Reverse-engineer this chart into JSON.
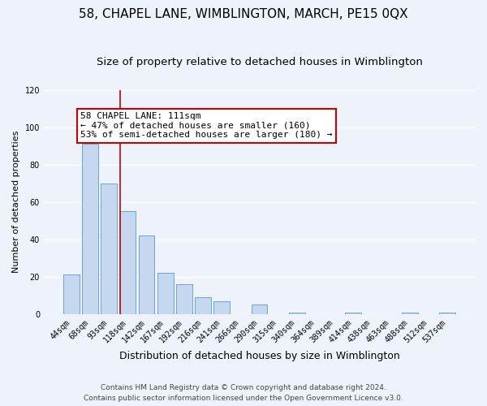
{
  "title": "58, CHAPEL LANE, WIMBLINGTON, MARCH, PE15 0QX",
  "subtitle": "Size of property relative to detached houses in Wimblington",
  "xlabel": "Distribution of detached houses by size in Wimblington",
  "ylabel": "Number of detached properties",
  "footnote1": "Contains HM Land Registry data © Crown copyright and database right 2024.",
  "footnote2": "Contains public sector information licensed under the Open Government Licence v3.0.",
  "bar_labels": [
    "44sqm",
    "68sqm",
    "93sqm",
    "118sqm",
    "142sqm",
    "167sqm",
    "192sqm",
    "216sqm",
    "241sqm",
    "266sqm",
    "290sqm",
    "315sqm",
    "340sqm",
    "364sqm",
    "389sqm",
    "414sqm",
    "438sqm",
    "463sqm",
    "488sqm",
    "512sqm",
    "537sqm"
  ],
  "bar_values": [
    21,
    91,
    70,
    55,
    42,
    22,
    16,
    9,
    7,
    0,
    5,
    0,
    1,
    0,
    0,
    1,
    0,
    0,
    1,
    0,
    1
  ],
  "bar_color": "#c5d8f0",
  "bar_edge_color": "#6aa3d5",
  "background_color": "#eef3fb",
  "grid_color": "#ffffff",
  "ylim": [
    0,
    120
  ],
  "yticks": [
    0,
    20,
    40,
    60,
    80,
    100,
    120
  ],
  "annotation_title": "58 CHAPEL LANE: 111sqm",
  "annotation_line1": "← 47% of detached houses are smaller (160)",
  "annotation_line2": "53% of semi-detached houses are larger (180) →",
  "annotation_box_color": "#ffffff",
  "annotation_box_edge_color": "#cc0000",
  "red_line_color": "#cc0000",
  "title_fontsize": 11,
  "subtitle_fontsize": 9.5,
  "xlabel_fontsize": 9,
  "ylabel_fontsize": 8,
  "tick_fontsize": 7,
  "annotation_fontsize": 8
}
